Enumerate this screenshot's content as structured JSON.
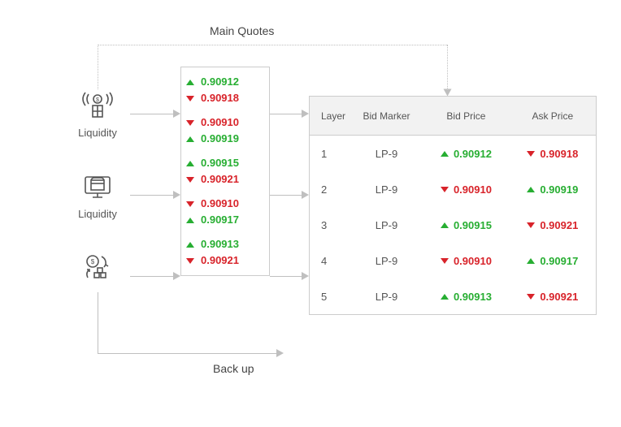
{
  "titles": {
    "main": "Main Quotes",
    "backup": "Back up"
  },
  "sources": [
    {
      "label": "Liquidity"
    },
    {
      "label": "Liquidity"
    },
    {
      "label": ""
    }
  ],
  "quote_column": {
    "pairs": [
      {
        "top": {
          "dir": "up",
          "value": "0.90912"
        },
        "bot": {
          "dir": "dn",
          "value": "0.90918"
        }
      },
      {
        "top": {
          "dir": "dn",
          "value": "0.90910"
        },
        "bot": {
          "dir": "up",
          "value": "0.90919"
        }
      },
      {
        "top": {
          "dir": "up",
          "value": "0.90915"
        },
        "bot": {
          "dir": "dn",
          "value": "0.90921"
        }
      },
      {
        "top": {
          "dir": "dn",
          "value": "0.90910"
        },
        "bot": {
          "dir": "up",
          "value": "0.90917"
        }
      },
      {
        "top": {
          "dir": "up",
          "value": "0.90913"
        },
        "bot": {
          "dir": "dn",
          "value": "0.90921"
        }
      }
    ]
  },
  "table": {
    "headers": {
      "layer": "Layer",
      "marker": "Bid Marker",
      "bid": "Bid Price",
      "ask": "Ask Price"
    },
    "rows": [
      {
        "layer": "1",
        "marker": "LP-9",
        "bid": {
          "dir": "up",
          "value": "0.90912"
        },
        "ask": {
          "dir": "dn",
          "value": "0.90918"
        }
      },
      {
        "layer": "2",
        "marker": "LP-9",
        "bid": {
          "dir": "dn",
          "value": "0.90910"
        },
        "ask": {
          "dir": "up",
          "value": "0.90919"
        }
      },
      {
        "layer": "3",
        "marker": "LP-9",
        "bid": {
          "dir": "up",
          "value": "0.90915"
        },
        "ask": {
          "dir": "dn",
          "value": "0.90921"
        }
      },
      {
        "layer": "4",
        "marker": "LP-9",
        "bid": {
          "dir": "dn",
          "value": "0.90910"
        },
        "ask": {
          "dir": "up",
          "value": "0.90917"
        }
      },
      {
        "layer": "5",
        "marker": "LP-9",
        "bid": {
          "dir": "up",
          "value": "0.90913"
        },
        "ask": {
          "dir": "dn",
          "value": "0.90921"
        }
      }
    ]
  },
  "colors": {
    "up": "#27ae32",
    "down": "#d8232a",
    "border": "#cccccc",
    "connector": "#bfbfbf",
    "text": "#555555",
    "header_bg": "#f2f2f2"
  }
}
